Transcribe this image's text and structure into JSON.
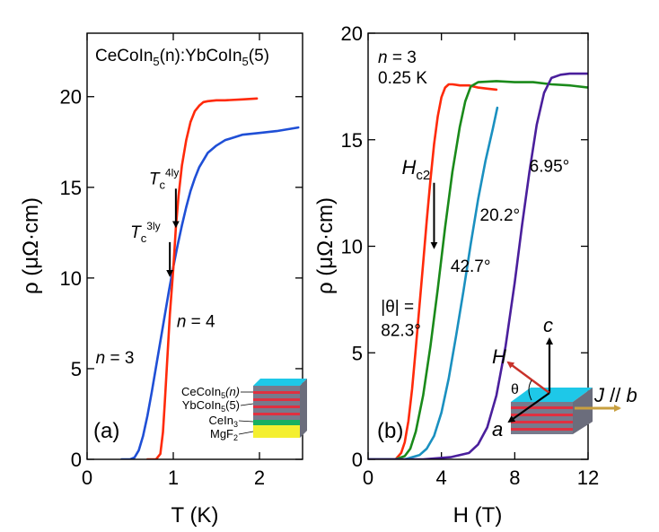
{
  "chart_data": [
    {
      "panel": "(a)",
      "type": "line",
      "title": "CeCoIn5(n):YbCoIn5(5)",
      "title_parts": {
        "t1": "CeCoIn",
        "s1": "5",
        "t2": "(n):YbCoIn",
        "s2": "5",
        "t3": "(5)"
      },
      "xlabel": "T (K)",
      "ylabel": "ρ (μΩ·cm)",
      "xlim": [
        0,
        2.5
      ],
      "ylim": [
        0,
        23.5
      ],
      "xticks": [
        "0",
        "1",
        "2"
      ],
      "xtick_values": [
        0,
        1,
        2
      ],
      "yticks": [
        "0",
        "5",
        "10",
        "15",
        "20"
      ],
      "ytick_values": [
        0,
        5,
        10,
        15,
        20
      ],
      "series": [
        {
          "name": "n = 3",
          "color": "#1f4fd6",
          "x": [
            0.4,
            0.5,
            0.55,
            0.6,
            0.65,
            0.7,
            0.75,
            0.8,
            0.85,
            0.9,
            0.95,
            1.0,
            1.05,
            1.1,
            1.15,
            1.2,
            1.25,
            1.3,
            1.4,
            1.5,
            1.6,
            1.8,
            2.0,
            2.2,
            2.45
          ],
          "y": [
            0,
            0,
            0.1,
            0.5,
            1.3,
            2.4,
            3.7,
            5.1,
            6.5,
            7.9,
            9.3,
            10.6,
            11.8,
            12.9,
            13.9,
            14.8,
            15.5,
            16.1,
            16.9,
            17.3,
            17.6,
            17.9,
            18.0,
            18.1,
            18.3
          ]
        },
        {
          "name": "n = 4",
          "color": "#ff2a0a",
          "x": [
            0.7,
            0.8,
            0.85,
            0.88,
            0.9,
            0.93,
            0.96,
            1.0,
            1.03,
            1.06,
            1.1,
            1.15,
            1.2,
            1.25,
            1.3,
            1.35,
            1.4,
            1.5,
            1.6,
            1.8,
            1.97
          ],
          "y": [
            0,
            0,
            0.3,
            1.5,
            3.0,
            5.5,
            8.0,
            10.5,
            12.8,
            14.5,
            16.2,
            17.6,
            18.6,
            19.2,
            19.5,
            19.7,
            19.75,
            19.8,
            19.8,
            19.85,
            19.9
          ]
        }
      ],
      "annotations": {
        "tc4": {
          "t": "T",
          "sub": "c",
          "sup": "4ly",
          "x": 1.03,
          "y": 12.7
        },
        "tc3": {
          "t": "T",
          "sub": "c",
          "sup": "3ly",
          "x": 0.96,
          "y": 10.0
        },
        "n4": {
          "n": "n",
          "rest": " = 4",
          "x": 1.04,
          "y": 7.3
        },
        "n3": {
          "n": "n",
          "rest": " = 3",
          "x": 0.1,
          "y": 5.3
        },
        "panel_label": "(a)"
      },
      "inset": {
        "labels": [
          {
            "t": "CeCoIn",
            "s": "5",
            "tail": "(n)"
          },
          {
            "t": "YbCoIn",
            "s": "5",
            "tail": "(5)"
          },
          {
            "t": "CeIn",
            "s": "3",
            "tail": ""
          },
          {
            "t": "MgF",
            "s": "2",
            "tail": ""
          }
        ],
        "colors": {
          "top": "#1ec8e8",
          "stripe": "#e03040",
          "gray": "#777a8c",
          "green": "#18b060",
          "yellow": "#f4ef30"
        }
      }
    },
    {
      "panel": "(b)",
      "type": "line",
      "xlabel": "H (T)",
      "ylabel": "ρ (μΩ·cm)",
      "xlim": [
        0,
        12
      ],
      "ylim": [
        0,
        20
      ],
      "xticks": [
        "0",
        "4",
        "8",
        "12"
      ],
      "xtick_values": [
        0,
        4,
        8,
        12
      ],
      "yticks": [
        "0",
        "5",
        "10",
        "15",
        "20"
      ],
      "ytick_values": [
        0,
        5,
        10,
        15,
        20
      ],
      "series": [
        {
          "name": "82.3°",
          "color": "#ff2a0a",
          "x": [
            0,
            1.5,
            1.8,
            2.0,
            2.2,
            2.4,
            2.6,
            2.8,
            3.0,
            3.2,
            3.4,
            3.6,
            3.8,
            4.0,
            4.2,
            4.4,
            4.6,
            5.0,
            5.5,
            6.0,
            6.5,
            7.0
          ],
          "y": [
            0,
            0,
            0.3,
            0.8,
            1.8,
            3.3,
            5.2,
            7.2,
            9.2,
            11.2,
            13.1,
            14.8,
            16.1,
            17.0,
            17.45,
            17.6,
            17.6,
            17.55,
            17.55,
            17.45,
            17.4,
            17.35
          ]
        },
        {
          "name": "42.7°",
          "color": "#1a8a1a",
          "x": [
            0,
            1.5,
            2.0,
            2.3,
            2.6,
            3.0,
            3.4,
            3.8,
            4.2,
            4.6,
            5.0,
            5.3,
            5.6,
            6.0,
            7.0,
            8.0,
            9.0,
            10.0,
            11.0,
            12.0
          ],
          "y": [
            0,
            0,
            0.15,
            0.5,
            1.3,
            3.0,
            5.3,
            8.0,
            10.9,
            13.5,
            15.6,
            16.8,
            17.5,
            17.7,
            17.75,
            17.7,
            17.7,
            17.6,
            17.55,
            17.45
          ]
        },
        {
          "name": "20.2°",
          "color": "#1a90c0",
          "x": [
            0,
            2.0,
            2.8,
            3.2,
            3.6,
            4.0,
            4.4,
            4.8,
            5.2,
            5.6,
            6.0,
            6.4,
            6.8,
            7.05
          ],
          "y": [
            0,
            0,
            0.2,
            0.5,
            1.1,
            2.2,
            3.8,
            5.8,
            7.9,
            10.1,
            12.2,
            14.0,
            15.5,
            16.5
          ]
        },
        {
          "name": "6.95°",
          "color": "#4a1f9c",
          "x": [
            0,
            3.0,
            4.5,
            5.5,
            6.0,
            6.5,
            7.0,
            7.5,
            8.0,
            8.4,
            8.8,
            9.2,
            9.6,
            10.0,
            10.5,
            11.0,
            12.0
          ],
          "y": [
            0,
            0,
            0.1,
            0.3,
            0.7,
            1.5,
            3.0,
            5.3,
            8.3,
            11.0,
            13.5,
            15.7,
            17.2,
            17.9,
            18.05,
            18.1,
            18.1
          ]
        }
      ],
      "annotations": {
        "n3": {
          "n": "n",
          "rest": " = 3"
        },
        "temp": "0.25 K",
        "hc2": {
          "t": "H",
          "sub": "c2",
          "x": 3.5,
          "y": 13.4
        },
        "angle_labels": [
          {
            "text": "|θ| =",
            "x": 0.7,
            "y": 6.9
          },
          {
            "text": "82.3°",
            "x": 0.7,
            "y": 5.8
          },
          {
            "text": "42.7°",
            "x": 4.5,
            "y": 8.8
          },
          {
            "text": "20.2°",
            "x": 6.1,
            "y": 11.2
          },
          {
            "text": "6.95°",
            "x": 8.8,
            "y": 13.5
          }
        ],
        "panel_label": "(b)"
      },
      "inset": {
        "vec_c": "c",
        "vec_H": "H",
        "vec_a": "a",
        "theta": "θ",
        "J": "J",
        "rest": " // ",
        "b": "b",
        "colors": {
          "top": "#1ec8e8",
          "stripe": "#e03040",
          "c": "#000000",
          "H": "#c8322a",
          "a": "#000000",
          "J": "#c8a040"
        }
      }
    }
  ]
}
